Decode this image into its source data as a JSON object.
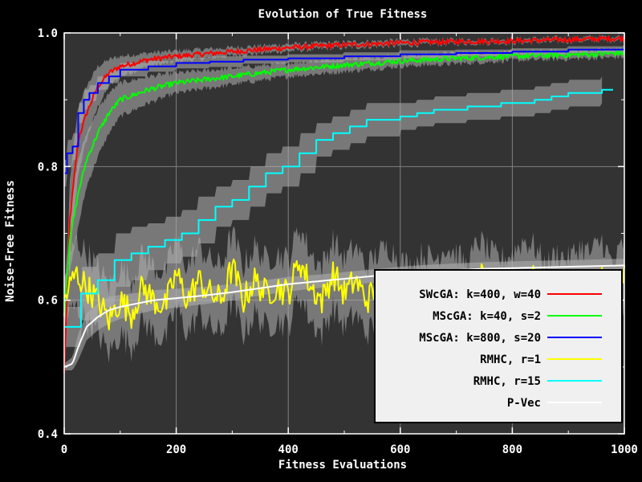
{
  "chart_data": {
    "type": "line",
    "title": "Evolution of True Fitness",
    "xlabel": "Fitness Evaluations",
    "ylabel": "Noise-Free Fitness",
    "xlim": [
      0,
      1000
    ],
    "ylim": [
      0.4,
      1.0
    ],
    "xticks": [
      0,
      200,
      400,
      600,
      800,
      1000
    ],
    "yticks": [
      0.4,
      0.6,
      0.8,
      1.0
    ],
    "ytick_labels": [
      "0.4",
      "0.6",
      "0.8",
      "1.0"
    ],
    "grid": true,
    "legend_position": "bottom-right",
    "background": "#333333",
    "series": [
      {
        "name": "SWcGA: k=400, w=40",
        "color": "#ff0000",
        "style": "noisy",
        "x": [
          0,
          10,
          25,
          40,
          60,
          80,
          100,
          150,
          200,
          300,
          400,
          500,
          600,
          700,
          800,
          900,
          1000
        ],
        "y": [
          0.49,
          0.72,
          0.84,
          0.88,
          0.92,
          0.94,
          0.95,
          0.96,
          0.965,
          0.972,
          0.978,
          0.982,
          0.985,
          0.987,
          0.988,
          0.99,
          0.992
        ],
        "band": [
          0.015,
          0.06,
          0.05,
          0.04,
          0.03,
          0.02,
          0.015,
          0.01,
          0.008,
          0.006,
          0.005,
          0.004,
          0.004,
          0.003,
          0.003,
          0.003,
          0.003
        ]
      },
      {
        "name": "MScGA: k=40, s=2",
        "color": "#00ff00",
        "style": "noisy",
        "x": [
          0,
          10,
          25,
          40,
          60,
          80,
          100,
          150,
          200,
          300,
          400,
          500,
          600,
          700,
          800,
          900,
          1000
        ],
        "y": [
          0.58,
          0.69,
          0.76,
          0.81,
          0.85,
          0.88,
          0.9,
          0.915,
          0.925,
          0.935,
          0.945,
          0.952,
          0.958,
          0.962,
          0.965,
          0.967,
          0.97
        ],
        "band": [
          0.03,
          0.05,
          0.05,
          0.04,
          0.035,
          0.03,
          0.025,
          0.02,
          0.015,
          0.012,
          0.01,
          0.01,
          0.008,
          0.008,
          0.006,
          0.006,
          0.006
        ]
      },
      {
        "name": "MScGA: k=800, s=20",
        "color": "#0000ff",
        "style": "step",
        "x": [
          0,
          5,
          15,
          25,
          35,
          45,
          60,
          80,
          100,
          150,
          200,
          260,
          320,
          400,
          500,
          600,
          700,
          800,
          900,
          1000
        ],
        "y": [
          0.79,
          0.82,
          0.83,
          0.88,
          0.9,
          0.91,
          0.925,
          0.935,
          0.945,
          0.95,
          0.955,
          0.957,
          0.96,
          0.962,
          0.965,
          0.968,
          0.97,
          0.972,
          0.975,
          0.978
        ],
        "band": [
          0.02,
          0.02,
          0.02,
          0.015,
          0.015,
          0.012,
          0.01,
          0.01,
          0.01,
          0.008,
          0.008,
          0.008,
          0.006,
          0.006,
          0.006,
          0.006,
          0.005,
          0.005,
          0.005,
          0.005
        ]
      },
      {
        "name": "RMHC, r=1",
        "color": "#ffff00",
        "style": "noisy",
        "x": [
          0,
          20,
          40,
          60,
          80,
          100,
          120,
          140,
          160,
          180,
          200,
          220,
          240,
          260,
          280,
          300,
          320,
          340,
          360,
          380,
          400,
          420,
          440,
          460,
          480,
          500,
          520,
          540,
          560,
          580,
          600,
          620,
          640,
          660,
          680,
          700,
          720,
          740,
          760,
          780,
          800,
          820,
          840,
          860,
          880,
          900,
          920,
          940,
          960,
          980,
          1000
        ],
        "y": [
          0.6,
          0.64,
          0.62,
          0.6,
          0.57,
          0.6,
          0.58,
          0.62,
          0.6,
          0.59,
          0.64,
          0.6,
          0.63,
          0.61,
          0.6,
          0.65,
          0.6,
          0.63,
          0.61,
          0.62,
          0.61,
          0.66,
          0.62,
          0.6,
          0.64,
          0.61,
          0.63,
          0.6,
          0.62,
          0.63,
          0.61,
          0.6,
          0.62,
          0.61,
          0.63,
          0.62,
          0.6,
          0.64,
          0.62,
          0.61,
          0.62,
          0.64,
          0.63,
          0.6,
          0.62,
          0.61,
          0.63,
          0.62,
          0.64,
          0.6,
          0.64
        ],
        "band": [
          0.03,
          0.05,
          0.05,
          0.05,
          0.05,
          0.05,
          0.05,
          0.05,
          0.05,
          0.05,
          0.05,
          0.05,
          0.05,
          0.05,
          0.05,
          0.05,
          0.05,
          0.05,
          0.05,
          0.05,
          0.05,
          0.05,
          0.05,
          0.05,
          0.05,
          0.05,
          0.05,
          0.05,
          0.05,
          0.05,
          0.05,
          0.05,
          0.05,
          0.05,
          0.05,
          0.05,
          0.05,
          0.05,
          0.05,
          0.05,
          0.05,
          0.05,
          0.05,
          0.05,
          0.05,
          0.05,
          0.05,
          0.05,
          0.05,
          0.05,
          0.05
        ]
      },
      {
        "name": "RMHC, r=15",
        "color": "#00ffff",
        "style": "step",
        "x": [
          0,
          30,
          60,
          90,
          120,
          150,
          180,
          210,
          240,
          270,
          300,
          330,
          360,
          390,
          420,
          450,
          480,
          510,
          540,
          570,
          600,
          630,
          660,
          690,
          720,
          750,
          780,
          810,
          840,
          870,
          900,
          930,
          960
        ],
        "y": [
          0.56,
          0.61,
          0.63,
          0.66,
          0.67,
          0.68,
          0.69,
          0.7,
          0.72,
          0.74,
          0.75,
          0.77,
          0.79,
          0.8,
          0.82,
          0.84,
          0.85,
          0.86,
          0.87,
          0.87,
          0.875,
          0.88,
          0.885,
          0.885,
          0.89,
          0.89,
          0.895,
          0.895,
          0.9,
          0.905,
          0.91,
          0.91,
          0.915
        ],
        "band": [
          0.03,
          0.04,
          0.04,
          0.04,
          0.04,
          0.035,
          0.035,
          0.035,
          0.035,
          0.03,
          0.03,
          0.03,
          0.03,
          0.03,
          0.03,
          0.025,
          0.025,
          0.025,
          0.025,
          0.025,
          0.02,
          0.02,
          0.02,
          0.02,
          0.02,
          0.02,
          0.02,
          0.02,
          0.02,
          0.02,
          0.02,
          0.02,
          0.02
        ]
      },
      {
        "name": "P-Vec",
        "color": "#ffffff",
        "style": "smooth",
        "x": [
          0,
          15,
          25,
          40,
          60,
          80,
          100,
          130,
          160,
          200,
          250,
          300,
          350,
          400,
          450,
          500,
          550,
          600,
          650,
          700,
          750,
          800,
          850,
          900,
          950,
          1000
        ],
        "y": [
          0.5,
          0.505,
          0.53,
          0.56,
          0.575,
          0.585,
          0.59,
          0.595,
          0.6,
          0.603,
          0.607,
          0.612,
          0.618,
          0.624,
          0.628,
          0.632,
          0.636,
          0.64,
          0.643,
          0.645,
          0.647,
          0.648,
          0.649,
          0.65,
          0.651,
          0.652
        ],
        "band": [
          0.005,
          0.01,
          0.02,
          0.02,
          0.02,
          0.02,
          0.018,
          0.016,
          0.015,
          0.014,
          0.013,
          0.012,
          0.011,
          0.011,
          0.01,
          0.01,
          0.01,
          0.01,
          0.01,
          0.01,
          0.01,
          0.01,
          0.01,
          0.01,
          0.01,
          0.01
        ]
      }
    ]
  }
}
